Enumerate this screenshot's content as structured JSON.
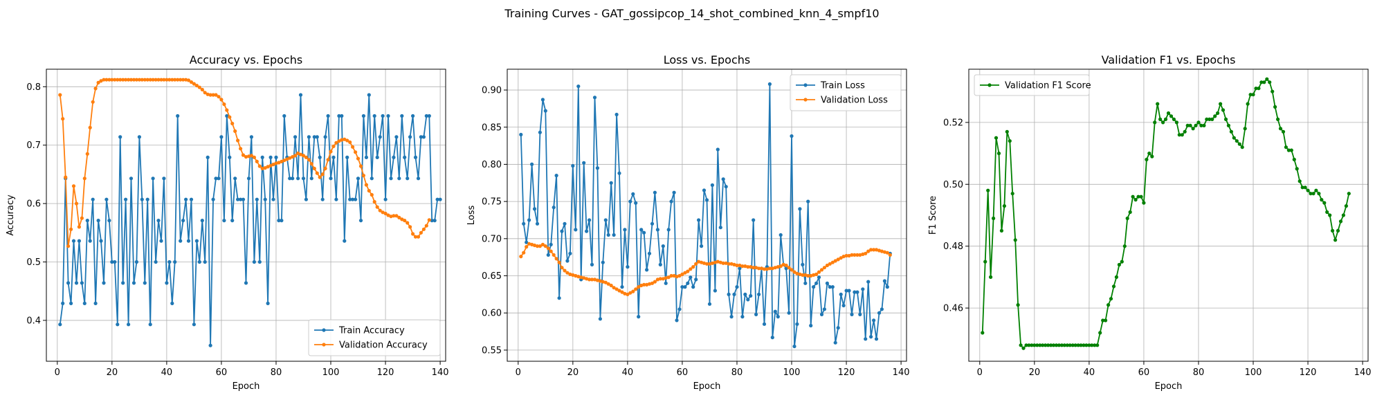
{
  "suptitle": "Training Curves - GAT_gossipcop_14_shot_combined_knn_4_smpf10",
  "chart_data": [
    {
      "type": "line",
      "title": "Accuracy vs. Epochs",
      "xlabel": "Epoch",
      "ylabel": "Accuracy",
      "xlim": [
        -4,
        142
      ],
      "ylim": [
        0.33,
        0.83
      ],
      "xticks": [
        0,
        20,
        40,
        60,
        80,
        100,
        120,
        140
      ],
      "yticks": [
        0.4,
        0.5,
        0.6,
        0.7,
        0.8
      ],
      "ytick_labels": [
        "0.4",
        "0.5",
        "0.6",
        "0.7",
        "0.8"
      ],
      "grid": true,
      "legend": "lower right",
      "series": [
        {
          "name": "Train Accuracy",
          "color": "#1f77b4",
          "x_start": 1,
          "values": [
            0.393,
            0.429,
            0.643,
            0.464,
            0.429,
            0.536,
            0.464,
            0.536,
            0.464,
            0.429,
            0.571,
            0.536,
            0.607,
            0.429,
            0.571,
            0.536,
            0.464,
            0.607,
            0.571,
            0.5,
            0.5,
            0.393,
            0.714,
            0.464,
            0.607,
            0.393,
            0.643,
            0.464,
            0.5,
            0.714,
            0.607,
            0.464,
            0.607,
            0.393,
            0.643,
            0.5,
            0.571,
            0.536,
            0.643,
            0.464,
            0.5,
            0.429,
            0.5,
            0.75,
            0.536,
            0.571,
            0.607,
            0.536,
            0.607,
            0.393,
            0.536,
            0.5,
            0.571,
            0.5,
            0.679,
            0.357,
            0.607,
            0.643,
            0.643,
            0.714,
            0.571,
            0.75,
            0.679,
            0.571,
            0.643,
            0.607,
            0.607,
            0.607,
            0.464,
            0.643,
            0.714,
            0.5,
            0.607,
            0.5,
            0.679,
            0.607,
            0.429,
            0.679,
            0.607,
            0.679,
            0.571,
            0.571,
            0.75,
            0.679,
            0.643,
            0.643,
            0.714,
            0.643,
            0.786,
            0.643,
            0.607,
            0.714,
            0.643,
            0.714,
            0.714,
            0.679,
            0.607,
            0.714,
            0.75,
            0.643,
            0.679,
            0.607,
            0.75,
            0.75,
            0.536,
            0.679,
            0.607,
            0.607,
            0.607,
            0.643,
            0.571,
            0.75,
            0.679,
            0.786,
            0.643,
            0.75,
            0.679,
            0.714,
            0.75,
            0.607,
            0.75,
            0.643,
            0.679,
            0.714,
            0.643,
            0.75,
            0.679,
            0.643,
            0.714,
            0.75,
            0.679,
            0.643,
            0.714,
            0.714,
            0.75,
            0.75,
            0.571,
            0.571,
            0.607,
            0.607
          ]
        },
        {
          "name": "Validation Accuracy",
          "color": "#ff7f0e",
          "x_start": 1,
          "values": [
            0.786,
            0.745,
            0.645,
            0.527,
            0.556,
            0.63,
            0.6,
            0.56,
            0.575,
            0.643,
            0.685,
            0.73,
            0.774,
            0.797,
            0.807,
            0.81,
            0.812,
            0.812,
            0.812,
            0.812,
            0.812,
            0.812,
            0.812,
            0.812,
            0.812,
            0.812,
            0.812,
            0.812,
            0.812,
            0.812,
            0.812,
            0.812,
            0.812,
            0.812,
            0.812,
            0.812,
            0.812,
            0.812,
            0.812,
            0.812,
            0.812,
            0.812,
            0.812,
            0.812,
            0.812,
            0.812,
            0.812,
            0.811,
            0.808,
            0.805,
            0.802,
            0.799,
            0.795,
            0.79,
            0.787,
            0.786,
            0.786,
            0.786,
            0.783,
            0.778,
            0.77,
            0.76,
            0.748,
            0.737,
            0.724,
            0.708,
            0.694,
            0.683,
            0.68,
            0.681,
            0.682,
            0.679,
            0.672,
            0.664,
            0.66,
            0.661,
            0.663,
            0.665,
            0.667,
            0.669,
            0.67,
            0.672,
            0.674,
            0.676,
            0.678,
            0.68,
            0.682,
            0.686,
            0.684,
            0.682,
            0.679,
            0.675,
            0.668,
            0.66,
            0.652,
            0.645,
            0.65,
            0.66,
            0.675,
            0.689,
            0.698,
            0.704,
            0.707,
            0.709,
            0.71,
            0.708,
            0.705,
            0.697,
            0.688,
            0.677,
            0.664,
            0.648,
            0.632,
            0.622,
            0.615,
            0.603,
            0.594,
            0.588,
            0.585,
            0.583,
            0.58,
            0.578,
            0.579,
            0.579,
            0.576,
            0.573,
            0.571,
            0.567,
            0.56,
            0.548,
            0.543,
            0.543,
            0.55,
            0.556,
            0.562,
            0.572
          ]
        }
      ]
    },
    {
      "type": "line",
      "title": "Loss vs. Epochs",
      "xlabel": "Epoch",
      "ylabel": "Loss",
      "xlim": [
        -4,
        142
      ],
      "ylim": [
        0.535,
        0.928
      ],
      "xticks": [
        0,
        20,
        40,
        60,
        80,
        100,
        120,
        140
      ],
      "yticks": [
        0.55,
        0.6,
        0.65,
        0.7,
        0.75,
        0.8,
        0.85,
        0.9
      ],
      "ytick_labels": [
        "0.55",
        "0.60",
        "0.65",
        "0.70",
        "0.75",
        "0.80",
        "0.85",
        "0.90"
      ],
      "grid": true,
      "legend": "upper right",
      "series": [
        {
          "name": "Train Loss",
          "color": "#1f77b4",
          "x_start": 1,
          "values": [
            0.84,
            0.72,
            0.695,
            0.725,
            0.8,
            0.74,
            0.72,
            0.843,
            0.887,
            0.872,
            0.678,
            0.692,
            0.742,
            0.785,
            0.62,
            0.71,
            0.72,
            0.67,
            0.68,
            0.798,
            0.712,
            0.905,
            0.645,
            0.802,
            0.71,
            0.725,
            0.665,
            0.89,
            0.795,
            0.592,
            0.668,
            0.725,
            0.705,
            0.775,
            0.705,
            0.867,
            0.788,
            0.635,
            0.712,
            0.662,
            0.75,
            0.76,
            0.748,
            0.595,
            0.712,
            0.708,
            0.658,
            0.68,
            0.72,
            0.762,
            0.712,
            0.665,
            0.69,
            0.64,
            0.712,
            0.75,
            0.762,
            0.59,
            0.605,
            0.635,
            0.635,
            0.64,
            0.648,
            0.635,
            0.645,
            0.725,
            0.69,
            0.765,
            0.752,
            0.612,
            0.772,
            0.63,
            0.82,
            0.715,
            0.78,
            0.77,
            0.625,
            0.595,
            0.625,
            0.635,
            0.66,
            0.595,
            0.625,
            0.618,
            0.623,
            0.725,
            0.598,
            0.625,
            0.66,
            0.585,
            0.662,
            0.908,
            0.567,
            0.602,
            0.595,
            0.705,
            0.665,
            0.66,
            0.6,
            0.838,
            0.555,
            0.585,
            0.74,
            0.665,
            0.64,
            0.75,
            0.583,
            0.635,
            0.64,
            0.648,
            0.598,
            0.605,
            0.64,
            0.635,
            0.635,
            0.56,
            0.58,
            0.625,
            0.61,
            0.63,
            0.63,
            0.598,
            0.628,
            0.628,
            0.598,
            0.632,
            0.565,
            0.642,
            0.568,
            0.59,
            0.565,
            0.6,
            0.605,
            0.643,
            0.635,
            0.68
          ]
        },
        {
          "name": "Validation Loss",
          "color": "#ff7f0e",
          "x_start": 1,
          "values": [
            0.676,
            0.681,
            0.689,
            0.693,
            0.692,
            0.691,
            0.69,
            0.69,
            0.692,
            0.69,
            0.687,
            0.683,
            0.678,
            0.673,
            0.668,
            0.661,
            0.657,
            0.654,
            0.652,
            0.651,
            0.65,
            0.649,
            0.648,
            0.647,
            0.646,
            0.645,
            0.645,
            0.645,
            0.644,
            0.643,
            0.642,
            0.641,
            0.639,
            0.637,
            0.634,
            0.632,
            0.63,
            0.628,
            0.626,
            0.625,
            0.627,
            0.629,
            0.632,
            0.635,
            0.637,
            0.638,
            0.638,
            0.639,
            0.64,
            0.642,
            0.645,
            0.646,
            0.646,
            0.647,
            0.648,
            0.65,
            0.65,
            0.649,
            0.65,
            0.652,
            0.654,
            0.656,
            0.659,
            0.662,
            0.666,
            0.669,
            0.668,
            0.667,
            0.666,
            0.666,
            0.667,
            0.668,
            0.669,
            0.668,
            0.667,
            0.667,
            0.666,
            0.666,
            0.665,
            0.664,
            0.664,
            0.663,
            0.663,
            0.662,
            0.662,
            0.661,
            0.661,
            0.66,
            0.66,
            0.659,
            0.659,
            0.66,
            0.66,
            0.661,
            0.662,
            0.663,
            0.665,
            0.664,
            0.661,
            0.658,
            0.655,
            0.653,
            0.652,
            0.651,
            0.651,
            0.65,
            0.65,
            0.651,
            0.652,
            0.655,
            0.658,
            0.661,
            0.664,
            0.666,
            0.668,
            0.67,
            0.672,
            0.674,
            0.676,
            0.677,
            0.677,
            0.678,
            0.678,
            0.678,
            0.678,
            0.679,
            0.68,
            0.683,
            0.685,
            0.685,
            0.685,
            0.684,
            0.683,
            0.682,
            0.681,
            0.678
          ]
        }
      ]
    },
    {
      "type": "line",
      "title": "Validation F1 vs. Epochs",
      "xlabel": "Epoch",
      "ylabel": "F1 Score",
      "xlim": [
        -4,
        142
      ],
      "ylim": [
        0.4428,
        0.5372
      ],
      "xticks": [
        0,
        20,
        40,
        60,
        80,
        100,
        120,
        140
      ],
      "yticks": [
        0.46,
        0.48,
        0.5,
        0.52
      ],
      "ytick_labels": [
        "0.46",
        "0.48",
        "0.50",
        "0.52"
      ],
      "grid": true,
      "legend": "upper left",
      "series": [
        {
          "name": "Validation F1 Score",
          "color": "#008000",
          "x_start": 1,
          "values": [
            0.452,
            0.475,
            0.498,
            0.47,
            0.489,
            0.515,
            0.51,
            0.485,
            0.493,
            0.517,
            0.514,
            0.497,
            0.482,
            0.461,
            0.448,
            0.447,
            0.448,
            0.448,
            0.448,
            0.448,
            0.448,
            0.448,
            0.448,
            0.448,
            0.448,
            0.448,
            0.448,
            0.448,
            0.448,
            0.448,
            0.448,
            0.448,
            0.448,
            0.448,
            0.448,
            0.448,
            0.448,
            0.448,
            0.448,
            0.448,
            0.448,
            0.448,
            0.448,
            0.452,
            0.456,
            0.456,
            0.461,
            0.463,
            0.467,
            0.47,
            0.474,
            0.475,
            0.48,
            0.489,
            0.491,
            0.496,
            0.495,
            0.496,
            0.496,
            0.494,
            0.508,
            0.51,
            0.509,
            0.52,
            0.526,
            0.521,
            0.52,
            0.521,
            0.523,
            0.522,
            0.521,
            0.52,
            0.516,
            0.516,
            0.517,
            0.519,
            0.519,
            0.518,
            0.519,
            0.52,
            0.519,
            0.519,
            0.521,
            0.521,
            0.521,
            0.522,
            0.523,
            0.526,
            0.524,
            0.521,
            0.519,
            0.517,
            0.515,
            0.514,
            0.513,
            0.512,
            0.518,
            0.526,
            0.529,
            0.529,
            0.531,
            0.531,
            0.533,
            0.533,
            0.534,
            0.533,
            0.53,
            0.525,
            0.521,
            0.518,
            0.517,
            0.512,
            0.511,
            0.511,
            0.508,
            0.505,
            0.501,
            0.499,
            0.499,
            0.498,
            0.497,
            0.497,
            0.498,
            0.497,
            0.495,
            0.494,
            0.491,
            0.49,
            0.485,
            0.482,
            0.485,
            0.488,
            0.49,
            0.493,
            0.497
          ]
        }
      ]
    }
  ]
}
